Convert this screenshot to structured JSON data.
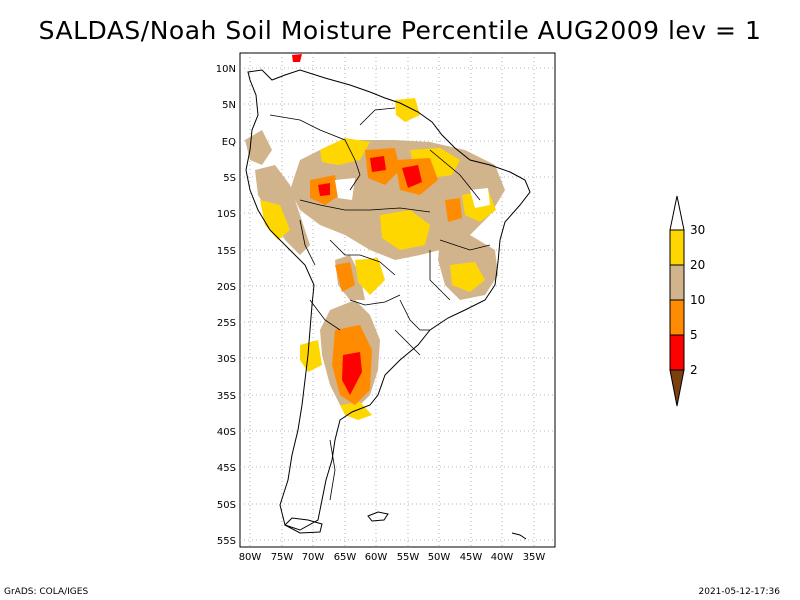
{
  "title": "SALDAS/Noah Soil Moisture Percentile AUG2009 lev = 1",
  "map": {
    "region": "South America",
    "lon_range": [
      -80,
      -30
    ],
    "lat_range": [
      -56,
      12
    ],
    "lat_ticks": [
      "10N",
      "5N",
      "EQ",
      "5S",
      "10S",
      "15S",
      "20S",
      "25S",
      "30S",
      "35S",
      "40S",
      "45S",
      "50S",
      "55S"
    ],
    "lon_ticks": [
      "80W",
      "75W",
      "70W",
      "65W",
      "60W",
      "55W",
      "50W",
      "45W",
      "40W",
      "35W"
    ],
    "grid": "dotted"
  },
  "legend": {
    "breaks": [
      "2",
      "5",
      "10",
      "20",
      "30"
    ],
    "colors": [
      "#7a4010",
      "#ff0000",
      "#ff8c00",
      "#d2b48c",
      "#ffd700",
      "#ffffff"
    ],
    "orientation": "vertical",
    "placement": "right"
  },
  "footer": {
    "credit": "GrADS: COLA/IGES",
    "timestamp": "2021-05-12-17:36"
  },
  "colors": {
    "tan": "#d2b48c",
    "yellow": "#ffd700",
    "orange": "#ff8c00",
    "red": "#ff0000",
    "brown": "#7a4010"
  }
}
